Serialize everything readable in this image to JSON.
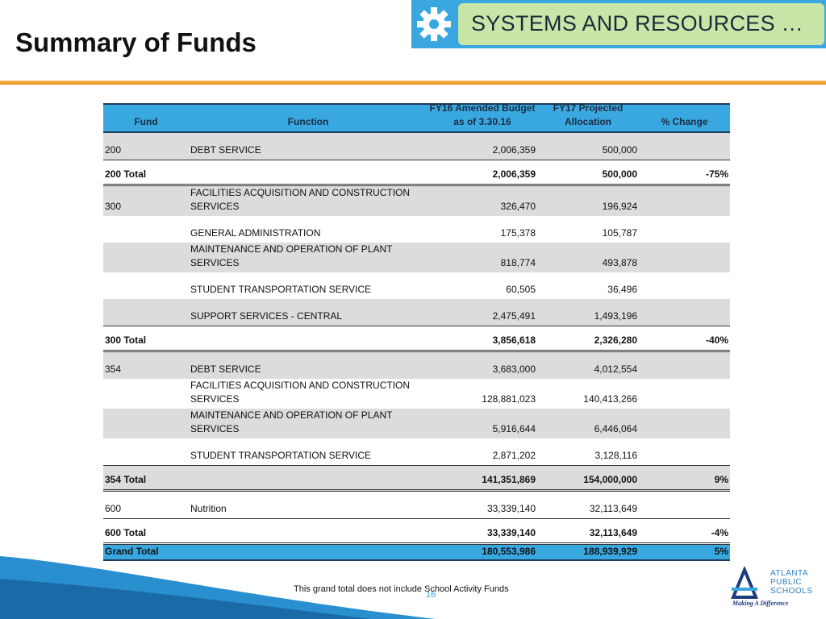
{
  "header": {
    "title": "Summary of Funds",
    "banner": "SYSTEMS AND RESOURCES …"
  },
  "table": {
    "columns": [
      "Fund",
      "Function",
      "FY16 Amended Budget as of 3.30.16",
      "FY17 Projected Allocation",
      "% Change"
    ],
    "rows": [
      [
        "200",
        "DEBT SERVICE",
        "2,006,359",
        "500,000",
        null
      ],
      [
        "200 Total",
        null,
        "2,006,359",
        "500,000",
        "-75%"
      ],
      [
        "300",
        "FACILITIES ACQUISITION AND CONSTRUCTION SERVICES",
        "326,470",
        "196,924",
        null
      ],
      [
        null,
        "GENERAL ADMINISTRATION",
        "175,378",
        "105,787",
        null
      ],
      [
        null,
        "MAINTENANCE AND OPERATION OF PLANT SERVICES",
        "818,774",
        "493,878",
        null
      ],
      [
        null,
        "STUDENT TRANSPORTATION SERVICE",
        "60,505",
        "36,496",
        null
      ],
      [
        null,
        "SUPPORT SERVICES - CENTRAL",
        "2,475,491",
        "1,493,196",
        null
      ],
      [
        "300 Total",
        null,
        "3,856,618",
        "2,326,280",
        "-40%"
      ],
      [
        "354",
        "DEBT SERVICE",
        "3,683,000",
        "4,012,554",
        null
      ],
      [
        null,
        "FACILITIES ACQUISITION AND CONSTRUCTION SERVICES",
        "128,881,023",
        "140,413,266",
        null
      ],
      [
        null,
        "MAINTENANCE AND OPERATION OF PLANT SERVICES",
        "5,916,644",
        "6,446,064",
        null
      ],
      [
        null,
        "STUDENT TRANSPORTATION SERVICE",
        "2,871,202",
        "3,128,116",
        null
      ],
      [
        "354 Total",
        null,
        "141,351,869",
        "154,000,000",
        "9%"
      ],
      [
        "600",
        "Nutrition",
        "33,339,140",
        "32,113,649",
        null
      ],
      [
        "600 Total",
        null,
        "33,339,140",
        "32,113,649",
        "-4%"
      ],
      [
        "Grand Total",
        null,
        "180,553,986",
        "188,939,929",
        "5%"
      ]
    ]
  },
  "footnote": "This grand total does not include School Activity Funds",
  "page_number": "16",
  "logo": {
    "lines": [
      "ATLANTA",
      "PUBLIC",
      "SCHOOLS"
    ],
    "tagline": "Making A Difference"
  }
}
